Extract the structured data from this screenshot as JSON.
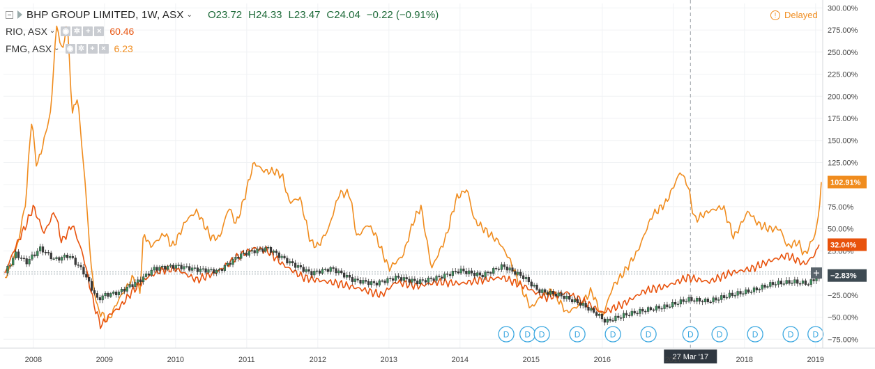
{
  "header": {
    "title": "BHP GROUP LIMITED, 1W, ASX",
    "open": "O23.72",
    "high": "H24.33",
    "low": "L23.47",
    "close": "C24.04",
    "change": "−0.22 (−0.91%)",
    "delayed": "Delayed"
  },
  "comparisons": [
    {
      "symbol": "RIO, ASX",
      "value": "60.46",
      "color": "#e8520c"
    },
    {
      "symbol": "FMG, ASX",
      "value": "6.23",
      "color": "#f08c1e"
    }
  ],
  "colors": {
    "bhp": "#3d4a52",
    "rio": "#e8520c",
    "fmg": "#f08c1e",
    "up": "#3c8c5a",
    "down": "#3a3a3a"
  },
  "chart_data": {
    "type": "line",
    "y_unit": "%",
    "y_range": [
      -85,
      305
    ],
    "x_range": [
      2007.58,
      2019.1
    ],
    "y_ticks": [
      "300.00%",
      "275.00%",
      "250.00%",
      "225.00%",
      "200.00%",
      "175.00%",
      "150.00%",
      "125.00%",
      "100.00%",
      "75.00%",
      "50.00%",
      "25.00%",
      "−25.00%",
      "−50.00%",
      "−75.00%"
    ],
    "y_tick_values": [
      300,
      275,
      250,
      225,
      200,
      175,
      150,
      125,
      100,
      75,
      50,
      25,
      -25,
      -50,
      -75
    ],
    "x_ticks": [
      "2008",
      "2009",
      "2010",
      "2011",
      "2012",
      "2013",
      "2014",
      "2015",
      "2016",
      "2017",
      "2018",
      "2019"
    ],
    "x_tick_values": [
      2008,
      2009,
      2010,
      2011,
      2012,
      2013,
      2014,
      2015,
      2016,
      2017,
      2018,
      2019
    ],
    "crosshair": {
      "x_value": 2017.24,
      "label": "27 Mar '17"
    },
    "last_labels": [
      {
        "series": "FMG, ASX",
        "label": "102.91%",
        "value": 102.91
      },
      {
        "series": "RIO, ASX",
        "label": "32.04%",
        "value": 32.04
      },
      {
        "series": "BHP GROUP LIMITED",
        "label": "−2.83%",
        "value": -2.83
      }
    ],
    "dividend_markers": {
      "label": "D",
      "x": [
        2014.65,
        2014.95,
        2015.15,
        2015.65,
        2016.15,
        2016.65,
        2017.24,
        2017.65,
        2018.15,
        2018.65,
        2019.0
      ]
    },
    "series": [
      {
        "name": "BHP GROUP LIMITED",
        "type": "candlestick",
        "x": [
          2007.6,
          2007.75,
          2007.9,
          2008.1,
          2008.3,
          2008.5,
          2008.7,
          2008.9,
          2009.0,
          2009.2,
          2009.5,
          2009.7,
          2010.0,
          2010.3,
          2010.6,
          2010.9,
          2011.1,
          2011.3,
          2011.6,
          2011.9,
          2012.2,
          2012.5,
          2012.8,
          2013.1,
          2013.4,
          2013.7,
          2014.0,
          2014.3,
          2014.6,
          2014.9,
          2015.1,
          2015.4,
          2015.7,
          2015.9,
          2016.05,
          2016.3,
          2016.6,
          2016.9,
          2017.2,
          2017.5,
          2017.8,
          2018.1,
          2018.4,
          2018.7,
          2018.9,
          2019.05
        ],
        "values": [
          0,
          22,
          12,
          28,
          15,
          20,
          2,
          -30,
          -25,
          -22,
          -8,
          5,
          8,
          4,
          2,
          20,
          25,
          28,
          12,
          0,
          5,
          -8,
          -12,
          -5,
          -10,
          -5,
          3,
          -3,
          8,
          -5,
          -20,
          -25,
          -35,
          -45,
          -55,
          -48,
          -42,
          -38,
          -30,
          -32,
          -25,
          -20,
          -12,
          -10,
          -12,
          -3
        ]
      },
      {
        "name": "RIO, ASX",
        "type": "line",
        "x": [
          2007.6,
          2007.75,
          2007.9,
          2008.0,
          2008.15,
          2008.3,
          2008.4,
          2008.55,
          2008.7,
          2008.85,
          2008.95,
          2009.1,
          2009.2,
          2009.4,
          2009.6,
          2009.8,
          2010.0,
          2010.3,
          2010.6,
          2010.9,
          2011.1,
          2011.3,
          2011.5,
          2011.8,
          2012.0,
          2012.3,
          2012.6,
          2012.9,
          2013.1,
          2013.4,
          2013.7,
          2014.0,
          2014.3,
          2014.6,
          2014.9,
          2015.2,
          2015.5,
          2015.8,
          2016.0,
          2016.3,
          2016.6,
          2016.9,
          2017.2,
          2017.5,
          2017.8,
          2018.1,
          2018.4,
          2018.6,
          2018.85,
          2019.0,
          2019.05
        ],
        "values": [
          0,
          30,
          55,
          75,
          45,
          70,
          35,
          55,
          20,
          -35,
          -60,
          -45,
          -40,
          -20,
          -5,
          3,
          5,
          -8,
          2,
          20,
          28,
          25,
          10,
          -5,
          -8,
          -12,
          -18,
          -25,
          -10,
          -15,
          -10,
          -12,
          -8,
          -5,
          -15,
          -28,
          -22,
          -35,
          -45,
          -35,
          -20,
          -15,
          -5,
          -10,
          0,
          5,
          15,
          20,
          10,
          22,
          32.04
        ]
      },
      {
        "name": "FMG, ASX",
        "type": "line",
        "x": [
          2007.6,
          2007.7,
          2007.8,
          2007.9,
          2007.97,
          2008.05,
          2008.15,
          2008.25,
          2008.32,
          2008.42,
          2008.47,
          2008.55,
          2008.62,
          2008.72,
          2008.82,
          2008.9,
          2009.05,
          2009.2,
          2009.4,
          2009.5,
          2009.55,
          2009.65,
          2009.85,
          2009.95,
          2010.0,
          2010.15,
          2010.3,
          2010.5,
          2010.62,
          2010.75,
          2010.85,
          2010.95,
          2011.1,
          2011.25,
          2011.4,
          2011.5,
          2011.6,
          2011.75,
          2011.9,
          2012.0,
          2012.15,
          2012.3,
          2012.45,
          2012.55,
          2012.7,
          2012.8,
          2013.0,
          2013.2,
          2013.35,
          2013.45,
          2013.6,
          2013.8,
          2013.95,
          2014.1,
          2014.2,
          2014.4,
          2014.55,
          2014.7,
          2014.85,
          2015.0,
          2015.15,
          2015.3,
          2015.5,
          2015.7,
          2015.85,
          2016.0,
          2016.15,
          2016.3,
          2016.5,
          2016.7,
          2016.9,
          2017.1,
          2017.2,
          2017.3,
          2017.5,
          2017.7,
          2017.85,
          2018.05,
          2018.2,
          2018.35,
          2018.5,
          2018.6,
          2018.75,
          2018.85,
          2019.0,
          2019.05,
          2019.08
        ],
        "values": [
          -5,
          10,
          40,
          85,
          175,
          120,
          150,
          185,
          280,
          250,
          290,
          180,
          200,
          110,
          0,
          -40,
          -55,
          -30,
          -5,
          -20,
          45,
          30,
          45,
          30,
          35,
          60,
          70,
          40,
          40,
          75,
          55,
          80,
          125,
          115,
          115,
          110,
          80,
          85,
          35,
          30,
          50,
          90,
          90,
          40,
          55,
          45,
          5,
          20,
          60,
          75,
          5,
          40,
          85,
          95,
          60,
          45,
          35,
          15,
          -15,
          -40,
          -25,
          -20,
          -45,
          -35,
          -20,
          -50,
          -15,
          0,
          25,
          65,
          80,
          115,
          100,
          60,
          70,
          75,
          40,
          70,
          55,
          50,
          50,
          30,
          35,
          20,
          45,
          70,
          102.91
        ]
      }
    ]
  }
}
